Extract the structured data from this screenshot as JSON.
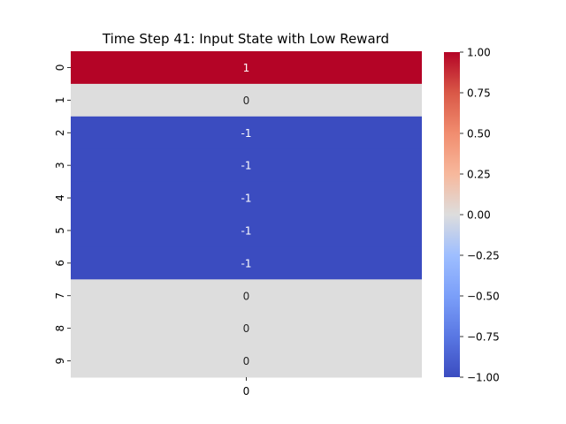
{
  "chart_data": {
    "type": "heatmap",
    "title": "Time Step 41: Input State with Low Reward",
    "xlabel": "",
    "ylabel": "",
    "row_labels": [
      "0",
      "1",
      "2",
      "3",
      "4",
      "5",
      "6",
      "7",
      "8",
      "9"
    ],
    "col_labels": [
      "0"
    ],
    "values": [
      [
        1
      ],
      [
        0
      ],
      [
        -1
      ],
      [
        -1
      ],
      [
        -1
      ],
      [
        -1
      ],
      [
        -1
      ],
      [
        0
      ],
      [
        0
      ],
      [
        0
      ]
    ],
    "annotations": [
      "1",
      "0",
      "-1",
      "-1",
      "-1",
      "-1",
      "-1",
      "0",
      "0",
      "0"
    ],
    "colorbar": {
      "vmin": -1.0,
      "vmax": 1.0,
      "ticks": [
        1.0,
        0.75,
        0.5,
        0.25,
        0.0,
        -0.25,
        -0.5,
        -0.75,
        -1.0
      ],
      "tick_labels": [
        "1.00",
        "0.75",
        "0.50",
        "0.25",
        "0.00",
        "−0.25",
        "−0.50",
        "−0.75",
        "−1.00"
      ],
      "colormap": "coolwarm",
      "colors": {
        "min": "#3b4cc0",
        "mid": "#dddddd",
        "max": "#b40426"
      }
    },
    "grid": false
  }
}
